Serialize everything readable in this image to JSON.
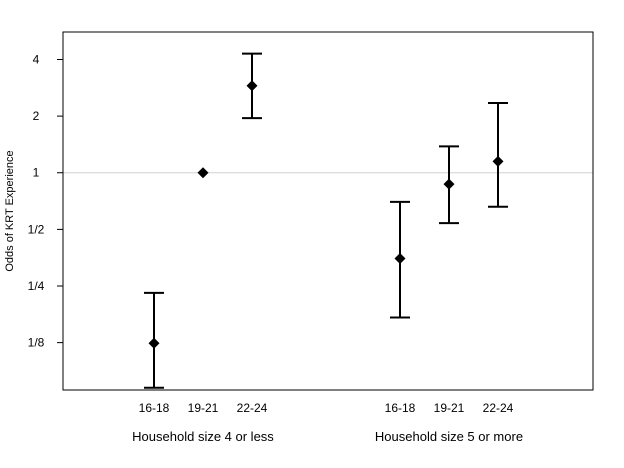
{
  "chart_data": {
    "type": "scatter",
    "subtype": "point-with-error-bars",
    "title": "",
    "ylabel": "Odds of KRT Experience",
    "xlabel": "",
    "y_scale": "log2",
    "ylim": [
      0.07,
      5.6
    ],
    "y_ticks": [
      {
        "value": 0.125,
        "label": "1/8"
      },
      {
        "value": 0.25,
        "label": "1/4"
      },
      {
        "value": 0.5,
        "label": "1/2"
      },
      {
        "value": 1,
        "label": "1"
      },
      {
        "value": 2,
        "label": "2"
      },
      {
        "value": 4,
        "label": "4"
      }
    ],
    "reference_line": {
      "value": 1,
      "color": "#d0d0d0"
    },
    "grid": false,
    "marker_color": "#000000",
    "groups": [
      {
        "name": "Household size 4 or less",
        "points": [
          {
            "category": "16-18",
            "estimate": 0.124,
            "lower": 0.072,
            "upper": 0.23
          },
          {
            "category": "19-21",
            "estimate": 1.0,
            "lower": null,
            "upper": null
          },
          {
            "category": "22-24",
            "estimate": 2.9,
            "lower": 1.95,
            "upper": 4.3
          }
        ]
      },
      {
        "name": "Household size 5 or more",
        "points": [
          {
            "category": "16-18",
            "estimate": 0.35,
            "lower": 0.17,
            "upper": 0.7
          },
          {
            "category": "19-21",
            "estimate": 0.87,
            "lower": 0.54,
            "upper": 1.38
          },
          {
            "category": "22-24",
            "estimate": 1.15,
            "lower": 0.66,
            "upper": 2.35
          }
        ]
      }
    ]
  }
}
